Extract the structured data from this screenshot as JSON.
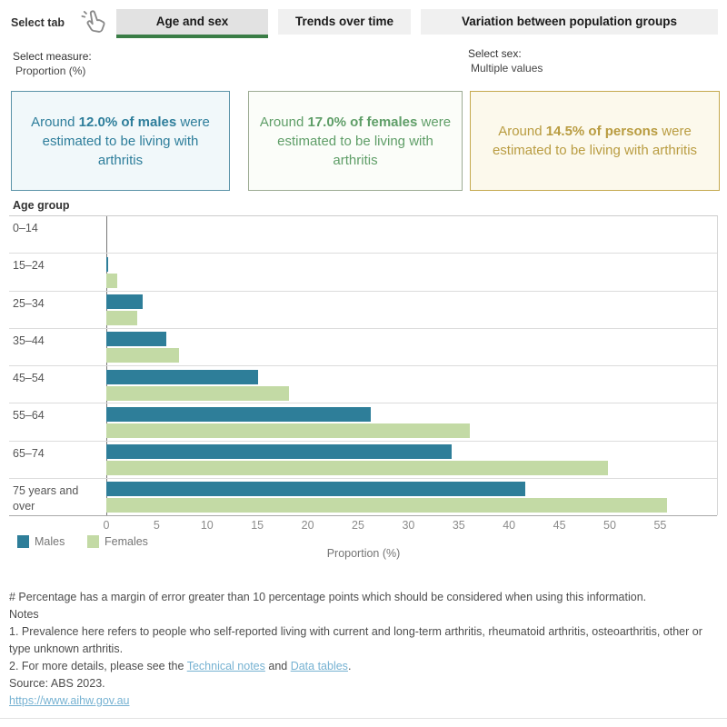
{
  "header": {
    "select_tab_label": "Select tab",
    "tabs": [
      {
        "label": "Age and sex",
        "active": true
      },
      {
        "label": "Trends over time",
        "active": false
      },
      {
        "label": "Variation between population groups",
        "active": false
      }
    ]
  },
  "colors": {
    "tab_underline": "#3a7d46",
    "link": "#76b2d2",
    "axis_line": "#787878"
  },
  "filters": {
    "measure_label": "Select measure:",
    "measure_value": "Proportion (%)",
    "sex_label": "Select sex:",
    "sex_value": "Multiple values"
  },
  "cards": [
    {
      "prefix": "Around ",
      "highlight": "12.0% of males",
      "suffix": " were estimated to be living with arthritis",
      "text_color": "#2e7e9b",
      "bg": "#f1f8fa",
      "border": "#5b93a8"
    },
    {
      "prefix": "Around ",
      "highlight": "17.0% of females",
      "suffix": " were estimated to be living with arthritis",
      "text_color": "#5f9e68",
      "bg": "#fbfdf9",
      "border": "#9cab93"
    },
    {
      "prefix": "Around ",
      "highlight": "14.5% of persons",
      "suffix": " were estimated to be living with arthritis",
      "text_color": "#b99c41",
      "bg": "#fcf9ec",
      "border": "#c5a94e"
    }
  ],
  "chart_data": {
    "type": "bar",
    "orientation": "horizontal",
    "row_header": "Age group",
    "categories": [
      "0–14",
      "15–24",
      "25–34",
      "35–44",
      "45–54",
      "55–64",
      "65–74",
      "75 years and over"
    ],
    "series": [
      {
        "name": "Males",
        "color": "#2e7e99",
        "values": [
          0,
          0.2,
          3.6,
          6.0,
          15.1,
          26.3,
          34.3,
          41.6
        ]
      },
      {
        "name": "Females",
        "color": "#c3daa5",
        "values": [
          0,
          1.1,
          3.1,
          7.2,
          18.1,
          36.1,
          49.8,
          55.7
        ]
      }
    ],
    "xlabel": "Proportion (%)",
    "x_ticks": [
      0,
      5,
      10,
      15,
      20,
      25,
      30,
      35,
      40,
      45,
      50,
      55
    ],
    "xlim": [
      0,
      58.5
    ],
    "grid": "row-separators"
  },
  "footer": {
    "hash_note": "# Percentage has a margin of error greater than 10 percentage points which should be considered when using this information.",
    "notes_heading": "Notes",
    "note1": "1. Prevalence here refers to people who self-reported living with current and long-term arthritis, rheumatoid arthritis, osteoarthritis, other or type unknown arthritis.",
    "note2_prefix": "2. For more details, please see the ",
    "link_technical_notes": "Technical notes",
    "note2_mid": " and ",
    "link_data_tables": "Data tables",
    "note2_suffix": ".",
    "source": "Source: ABS 2023.",
    "url": "https://www.aihw.gov.au"
  }
}
